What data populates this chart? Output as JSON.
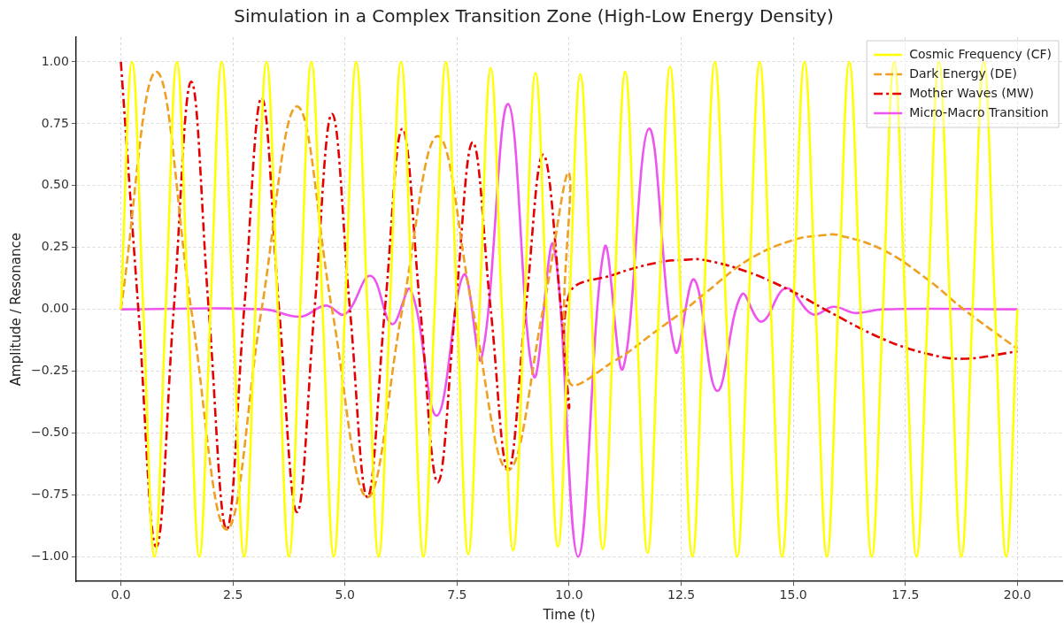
{
  "chart_data": {
    "type": "line",
    "title": "Simulation in a Complex Transition Zone (High-Low Energy Density)",
    "xlabel": "Time (t)",
    "ylabel": "Amplitude / Resonance",
    "xlim": [
      -1,
      21
    ],
    "ylim": [
      -1.1,
      1.1
    ],
    "xticks": [
      {
        "value": 0,
        "label": "0.0"
      },
      {
        "value": 2.5,
        "label": "2.5"
      },
      {
        "value": 5,
        "label": "5.0"
      },
      {
        "value": 7.5,
        "label": "7.5"
      },
      {
        "value": 10,
        "label": "10.0"
      },
      {
        "value": 12.5,
        "label": "12.5"
      },
      {
        "value": 15,
        "label": "15.0"
      },
      {
        "value": 17.5,
        "label": "17.5"
      },
      {
        "value": 20,
        "label": "20.0"
      }
    ],
    "yticks": [
      {
        "value": -1,
        "label": "−1.00"
      },
      {
        "value": -0.75,
        "label": "−0.75"
      },
      {
        "value": -0.5,
        "label": "−0.50"
      },
      {
        "value": -0.25,
        "label": "−0.25"
      },
      {
        "value": 0,
        "label": "0.00"
      },
      {
        "value": 0.25,
        "label": "0.25"
      },
      {
        "value": 0.5,
        "label": "0.50"
      },
      {
        "value": 0.75,
        "label": "0.75"
      },
      {
        "value": 1,
        "label": "1.00"
      }
    ],
    "grid": true,
    "legend": "top right",
    "marker": "none",
    "series": [
      {
        "name": "Cosmic Frequency (CF)",
        "color": "#ffff00",
        "line_style": "solid",
        "x": [
          0,
          0.25,
          0.5,
          0.75,
          1,
          1.25,
          1.5,
          1.75,
          2,
          2.25,
          2.5,
          2.75,
          3,
          3.25,
          3.5,
          3.75,
          4,
          4.25,
          4.5,
          4.75,
          5,
          5.25,
          5.5,
          5.75,
          6,
          6.25,
          6.5,
          6.75,
          7,
          7.25,
          7.5,
          7.75,
          8,
          8.25,
          8.5,
          8.75,
          9,
          9.25,
          9.5,
          9.75,
          10,
          10.25,
          10.5,
          10.75,
          11,
          11.25,
          11.5,
          11.75,
          12,
          12.25,
          12.5,
          12.75,
          13,
          13.25,
          13.5,
          13.75,
          14,
          14.25,
          14.5,
          14.75,
          15,
          15.25,
          15.5,
          15.75,
          16,
          16.25,
          16.5,
          16.75,
          17,
          17.25,
          17.5,
          17.75,
          18,
          18.25,
          18.5,
          18.75,
          19,
          19.25,
          19.5,
          19.75,
          20
        ],
        "values": [
          0,
          1,
          0,
          -1,
          0,
          1,
          0,
          -1,
          0,
          1,
          0,
          -1,
          0,
          1,
          0,
          -1,
          0,
          1,
          0,
          -1,
          0,
          1,
          0,
          -1,
          0,
          1,
          0,
          -1,
          0,
          1,
          0,
          -0.99,
          0,
          0.975,
          0,
          -0.975,
          0,
          0.955,
          0,
          -0.96,
          0,
          0.95,
          0,
          -0.97,
          0,
          0.96,
          0,
          -0.985,
          0,
          0.98,
          0,
          -1,
          0,
          1,
          0,
          -1,
          0,
          1,
          0,
          -1,
          0,
          1,
          0,
          -1,
          0,
          1,
          0,
          -1,
          0,
          1,
          0,
          -1,
          0,
          1,
          0,
          -1,
          0,
          1,
          0,
          -1,
          0
        ]
      },
      {
        "name": "Dark Energy (DE)",
        "color": "#f0a020",
        "line_style": "dashed",
        "x": [
          0,
          0.79,
          1.57,
          2.36,
          3.14,
          3.93,
          4.71,
          5.5,
          6.28,
          7.07,
          7.85,
          8.64,
          9.42,
          10,
          10,
          11,
          12,
          12.6,
          13,
          14,
          15,
          15.7,
          16,
          17,
          18,
          18.8,
          20
        ],
        "values": [
          0,
          0.96,
          0,
          -0.89,
          0,
          0.82,
          0,
          -0.76,
          0,
          0.7,
          0,
          -0.65,
          0,
          0.55,
          -0.29,
          -0.21,
          -0.08,
          0,
          0.06,
          0.2,
          0.28,
          0.3,
          0.3,
          0.24,
          0.12,
          0,
          -0.16
        ]
      },
      {
        "name": "Mother Waves (MW)",
        "color": "#e60000",
        "line_style": "dashdot",
        "x": [
          0,
          0.39,
          0.79,
          1.18,
          1.57,
          1.96,
          2.36,
          2.75,
          3.14,
          3.53,
          3.93,
          4.32,
          4.71,
          5.11,
          5.5,
          5.89,
          6.28,
          6.68,
          7.07,
          7.46,
          7.85,
          8.25,
          8.64,
          9.03,
          9.42,
          9.82,
          10,
          10,
          11,
          12,
          12.6,
          13,
          14,
          15,
          15.7,
          17,
          18,
          18.8,
          20
        ],
        "values": [
          1,
          0,
          -0.96,
          0,
          0.92,
          0,
          -0.89,
          0,
          0.855,
          0,
          -0.82,
          0,
          0.79,
          0,
          -0.76,
          0,
          0.73,
          0,
          -0.7,
          0,
          0.675,
          0,
          -0.65,
          0,
          0.625,
          0,
          -0.4,
          0.06,
          0.14,
          0.19,
          0.2,
          0.2,
          0.15,
          0.07,
          0,
          -0.12,
          -0.18,
          -0.2,
          -0.17
        ]
      },
      {
        "name": "Micro-Macro Transition",
        "color": "#ee55ee",
        "line_style": "solid",
        "x": [
          0,
          3.2,
          4,
          4.57,
          5,
          5.57,
          6.05,
          6.46,
          7.05,
          7.65,
          8.04,
          8.64,
          9.21,
          9.65,
          10.2,
          10.79,
          11.2,
          11.78,
          12.37,
          12.79,
          13.3,
          13.85,
          14.29,
          14.84,
          15.43,
          15.9,
          16.38,
          17,
          20
        ],
        "values": [
          0,
          0,
          -0.03,
          0.015,
          -0.02,
          0.135,
          -0.06,
          0.08,
          -0.43,
          0.14,
          -0.2,
          0.83,
          -0.27,
          0.26,
          -1,
          0.25,
          -0.24,
          0.73,
          -0.17,
          0.12,
          -0.33,
          0.06,
          -0.05,
          0.085,
          -0.02,
          0.01,
          -0.015,
          0,
          0
        ]
      }
    ]
  }
}
